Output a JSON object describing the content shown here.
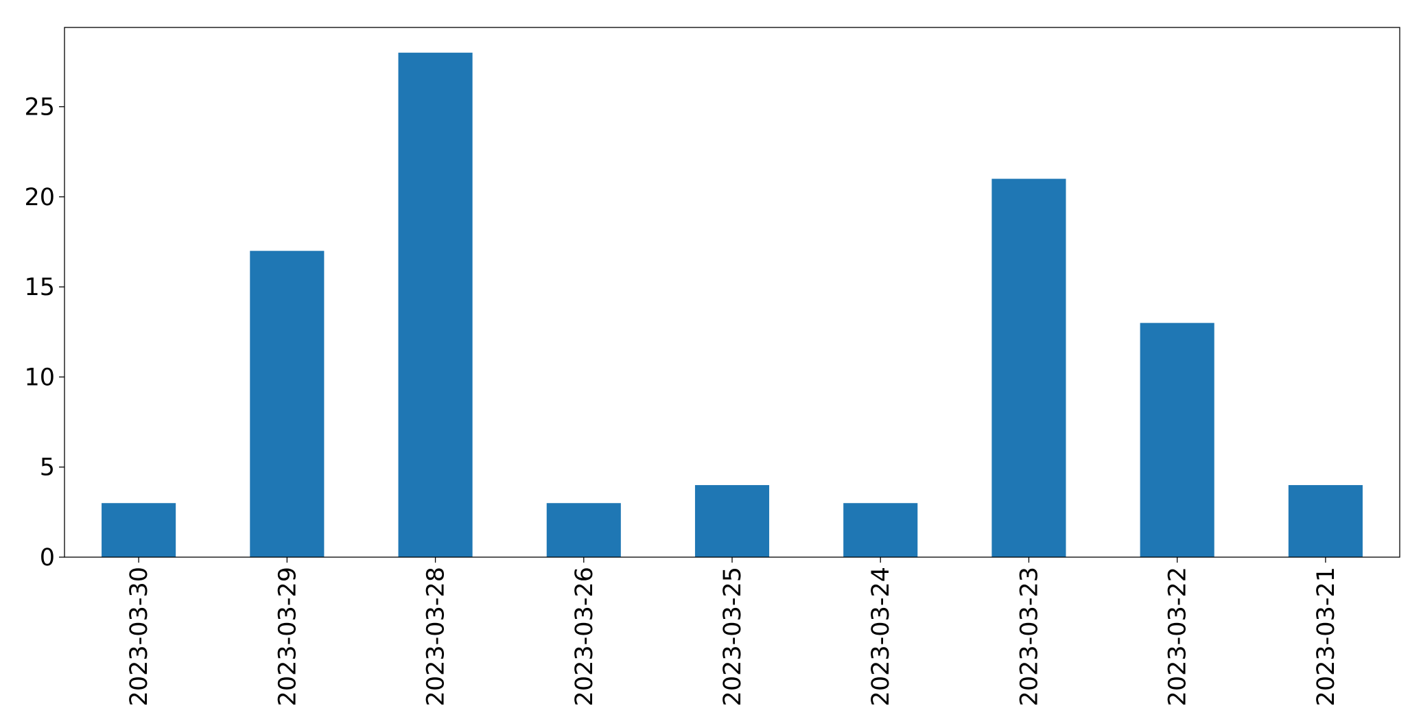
{
  "chart_data": {
    "type": "bar",
    "categories": [
      "2023-03-30",
      "2023-03-29",
      "2023-03-28",
      "2023-03-26",
      "2023-03-25",
      "2023-03-24",
      "2023-03-23",
      "2023-03-22",
      "2023-03-21"
    ],
    "values": [
      3,
      17,
      28,
      3,
      4,
      3,
      21,
      13,
      4
    ],
    "title": "",
    "xlabel": "",
    "ylabel": "",
    "ylim": [
      0,
      29.4
    ],
    "yticks": [
      0,
      5,
      10,
      15,
      20,
      25
    ],
    "grid": false,
    "legend": "none",
    "bar_color": "#1f77b4",
    "xtick_rotation": 90
  }
}
